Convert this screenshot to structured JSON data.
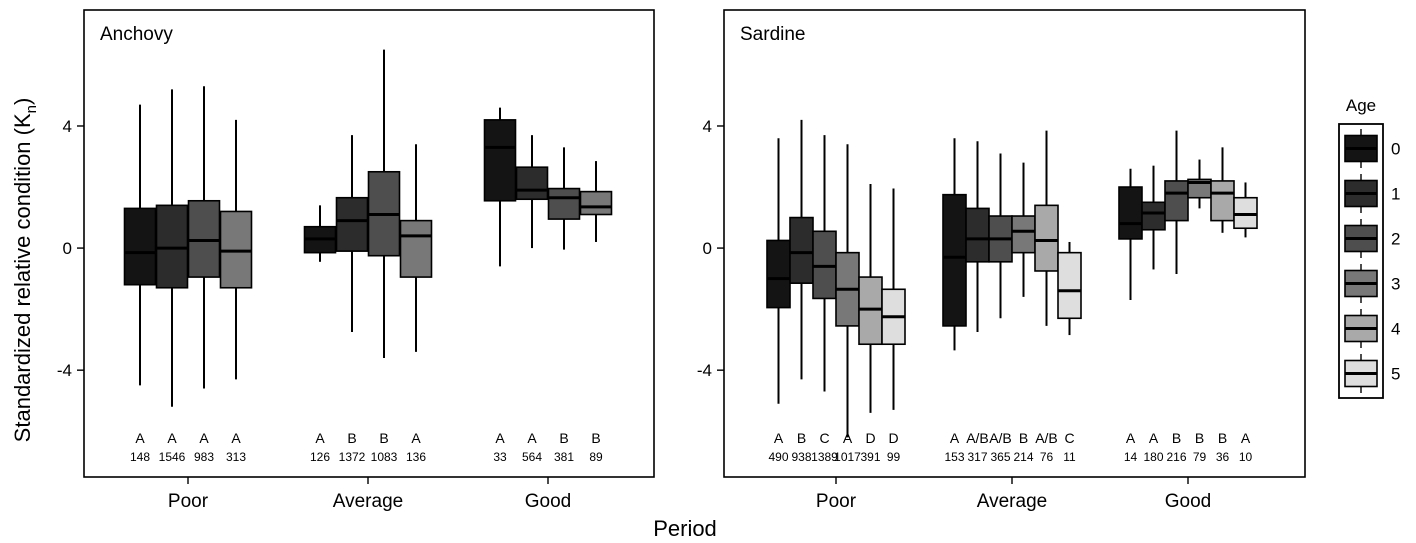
{
  "chart_data": {
    "type": "box",
    "ylabel": "Standardized relative condition (K",
    "ylabel_sub": "n",
    "ylabel_close": ")",
    "xlabel": "Period",
    "ylim": [
      -7.5,
      7.8
    ],
    "yticks": [
      -4,
      0,
      4
    ],
    "categories": [
      "Poor",
      "Average",
      "Good"
    ],
    "legend": {
      "title": "Age",
      "placement": "right",
      "entries": [
        "0",
        "1",
        "2",
        "3",
        "4",
        "5"
      ]
    },
    "age_colors": [
      "#141414",
      "#2c2c2c",
      "#4e4e4e",
      "#787878",
      "#a9a9a9",
      "#dedede"
    ],
    "panels": [
      {
        "title": "Anchovy",
        "groups": [
          {
            "period": "Poor",
            "boxes": [
              {
                "age": "0",
                "whisker_low": -4.5,
                "q1": -1.2,
                "median": -0.15,
                "q3": 1.3,
                "whisker_high": 4.7,
                "sig": "A",
                "n": "148"
              },
              {
                "age": "1",
                "whisker_low": -5.2,
                "q1": -1.3,
                "median": 0.0,
                "q3": 1.4,
                "whisker_high": 5.2,
                "sig": "A",
                "n": "1546"
              },
              {
                "age": "2",
                "whisker_low": -4.6,
                "q1": -0.95,
                "median": 0.25,
                "q3": 1.55,
                "whisker_high": 5.3,
                "sig": "A",
                "n": "983"
              },
              {
                "age": "3",
                "whisker_low": -4.3,
                "q1": -1.3,
                "median": -0.1,
                "q3": 1.2,
                "whisker_high": 4.2,
                "sig": "A",
                "n": "313"
              }
            ]
          },
          {
            "period": "Average",
            "boxes": [
              {
                "age": "0",
                "whisker_low": -0.45,
                "q1": -0.15,
                "median": 0.3,
                "q3": 0.7,
                "whisker_high": 1.4,
                "sig": "A",
                "n": "126"
              },
              {
                "age": "1",
                "whisker_low": -2.75,
                "q1": -0.1,
                "median": 0.9,
                "q3": 1.65,
                "whisker_high": 3.7,
                "sig": "B",
                "n": "1372"
              },
              {
                "age": "2",
                "whisker_low": -3.6,
                "q1": -0.25,
                "median": 1.1,
                "q3": 2.5,
                "whisker_high": 6.5,
                "sig": "B",
                "n": "1083"
              },
              {
                "age": "3",
                "whisker_low": -3.4,
                "q1": -0.95,
                "median": 0.4,
                "q3": 0.9,
                "whisker_high": 3.4,
                "sig": "A",
                "n": "136"
              }
            ]
          },
          {
            "period": "Good",
            "boxes": [
              {
                "age": "0",
                "whisker_low": -0.6,
                "q1": 1.55,
                "median": 3.3,
                "q3": 4.2,
                "whisker_high": 4.6,
                "sig": "A",
                "n": "33"
              },
              {
                "age": "1",
                "whisker_low": 0.0,
                "q1": 1.6,
                "median": 1.9,
                "q3": 2.65,
                "whisker_high": 3.7,
                "sig": "A",
                "n": "564"
              },
              {
                "age": "2",
                "whisker_low": -0.05,
                "q1": 0.95,
                "median": 1.65,
                "q3": 1.95,
                "whisker_high": 3.3,
                "sig": "B",
                "n": "381"
              },
              {
                "age": "3",
                "whisker_low": 0.2,
                "q1": 1.1,
                "median": 1.35,
                "q3": 1.85,
                "whisker_high": 2.85,
                "sig": "B",
                "n": "89"
              }
            ]
          }
        ]
      },
      {
        "title": "Sardine",
        "groups": [
          {
            "period": "Poor",
            "boxes": [
              {
                "age": "0",
                "whisker_low": -5.1,
                "q1": -1.95,
                "median": -1.0,
                "q3": 0.25,
                "whisker_high": 3.6,
                "sig": "A",
                "n": "490"
              },
              {
                "age": "1",
                "whisker_low": -4.3,
                "q1": -1.15,
                "median": -0.15,
                "q3": 1.0,
                "whisker_high": 4.2,
                "sig": "B",
                "n": "938"
              },
              {
                "age": "2",
                "whisker_low": -4.7,
                "q1": -1.65,
                "median": -0.6,
                "q3": 0.55,
                "whisker_high": 3.7,
                "sig": "C",
                "n": "1389"
              },
              {
                "age": "3",
                "whisker_low": -6.2,
                "q1": -2.55,
                "median": -1.35,
                "q3": -0.15,
                "whisker_high": 3.4,
                "sig": "A",
                "n": "1017"
              },
              {
                "age": "4",
                "whisker_low": -5.4,
                "q1": -3.15,
                "median": -2.0,
                "q3": -0.95,
                "whisker_high": 2.1,
                "sig": "D",
                "n": "391"
              },
              {
                "age": "5",
                "whisker_low": -5.3,
                "q1": -3.15,
                "median": -2.25,
                "q3": -1.35,
                "whisker_high": 1.95,
                "sig": "D",
                "n": "99"
              }
            ]
          },
          {
            "period": "Average",
            "boxes": [
              {
                "age": "0",
                "whisker_low": -3.35,
                "q1": -2.55,
                "median": -0.3,
                "q3": 1.75,
                "whisker_high": 3.6,
                "sig": "A",
                "n": "153"
              },
              {
                "age": "1",
                "whisker_low": -2.75,
                "q1": -0.45,
                "median": 0.3,
                "q3": 1.3,
                "whisker_high": 3.5,
                "sig": "A/B",
                "n": "317"
              },
              {
                "age": "2",
                "whisker_low": -2.3,
                "q1": -0.45,
                "median": 0.3,
                "q3": 1.05,
                "whisker_high": 3.1,
                "sig": "A/B",
                "n": "365"
              },
              {
                "age": "3",
                "whisker_low": -1.6,
                "q1": -0.15,
                "median": 0.55,
                "q3": 1.05,
                "whisker_high": 2.8,
                "sig": "B",
                "n": "214"
              },
              {
                "age": "4",
                "whisker_low": -2.55,
                "q1": -0.75,
                "median": 0.25,
                "q3": 1.4,
                "whisker_high": 3.85,
                "sig": "A/B",
                "n": "76"
              },
              {
                "age": "5",
                "whisker_low": -2.85,
                "q1": -2.3,
                "median": -1.4,
                "q3": -0.15,
                "whisker_high": 0.2,
                "sig": "C",
                "n": "11"
              }
            ]
          },
          {
            "period": "Good",
            "boxes": [
              {
                "age": "0",
                "whisker_low": -1.7,
                "q1": 0.3,
                "median": 0.8,
                "q3": 2.0,
                "whisker_high": 2.6,
                "sig": "A",
                "n": "14"
              },
              {
                "age": "1",
                "whisker_low": -0.7,
                "q1": 0.6,
                "median": 1.15,
                "q3": 1.5,
                "whisker_high": 2.7,
                "sig": "A",
                "n": "180"
              },
              {
                "age": "2",
                "whisker_low": -0.85,
                "q1": 0.9,
                "median": 1.8,
                "q3": 2.2,
                "whisker_high": 3.85,
                "sig": "B",
                "n": "216"
              },
              {
                "age": "3",
                "whisker_low": 1.3,
                "q1": 1.65,
                "median": 2.15,
                "q3": 2.25,
                "whisker_high": 2.9,
                "sig": "B",
                "n": "79"
              },
              {
                "age": "4",
                "whisker_low": 0.5,
                "q1": 0.9,
                "median": 1.8,
                "q3": 2.2,
                "whisker_high": 3.3,
                "sig": "B",
                "n": "36"
              },
              {
                "age": "5",
                "whisker_low": 0.35,
                "q1": 0.65,
                "median": 1.1,
                "q3": 1.65,
                "whisker_high": 2.15,
                "sig": "A",
                "n": "10"
              }
            ]
          }
        ]
      }
    ]
  }
}
